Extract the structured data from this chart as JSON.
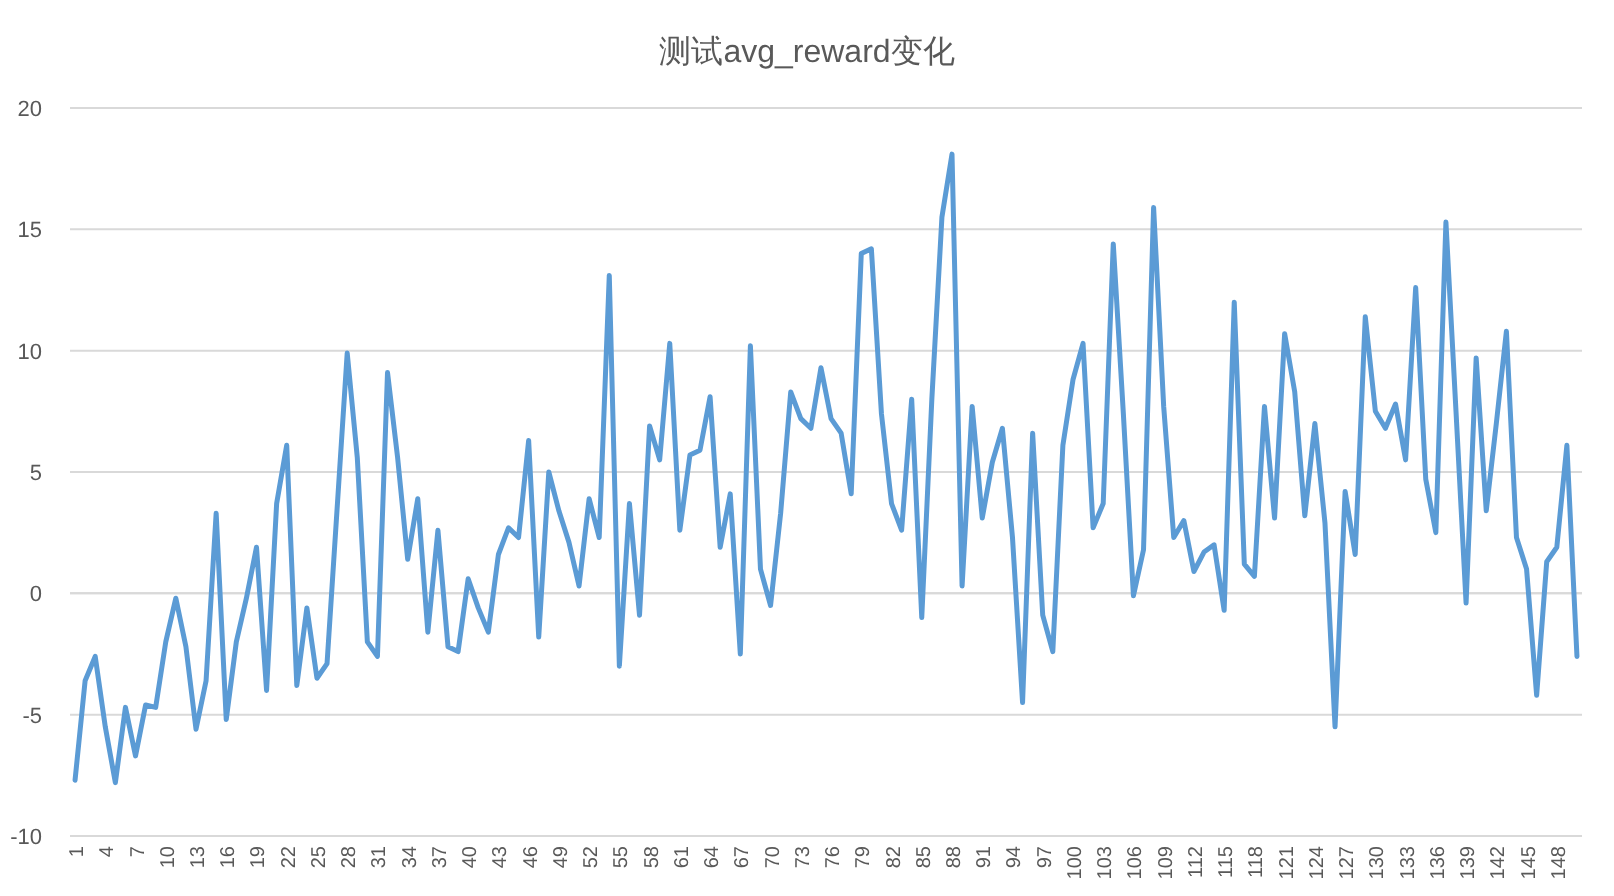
{
  "chart_data": {
    "type": "line",
    "title": "测试avg_reward变化",
    "categories": [
      "1",
      null,
      null,
      "4",
      null,
      null,
      "7",
      null,
      null,
      "10",
      null,
      null,
      "13",
      null,
      null,
      "16",
      null,
      null,
      "19",
      null,
      null,
      "22",
      null,
      null,
      "25",
      null,
      null,
      "28",
      null,
      null,
      "31",
      null,
      null,
      "34",
      null,
      null,
      "37",
      null,
      null,
      "40",
      null,
      null,
      "43",
      null,
      null,
      "46",
      null,
      null,
      "49",
      null,
      null,
      "52",
      null,
      null,
      "55",
      null,
      null,
      "58",
      null,
      null,
      "61",
      null,
      null,
      "64",
      null,
      null,
      "67",
      null,
      null,
      "70",
      null,
      null,
      "73",
      null,
      null,
      "76",
      null,
      null,
      "79",
      null,
      null,
      "82",
      null,
      null,
      "85",
      null,
      null,
      "88",
      null,
      null,
      "91",
      null,
      null,
      "94",
      null,
      null,
      "97",
      null,
      null,
      "100",
      null,
      null,
      "103",
      null,
      null,
      "106",
      null,
      null,
      "109",
      null,
      null,
      "112",
      null,
      null,
      "115",
      null,
      null,
      "118",
      null,
      null,
      "121",
      null,
      null,
      "124",
      null,
      null,
      "127",
      null,
      null,
      "130",
      null,
      null,
      "133",
      null,
      null,
      "136",
      null,
      null,
      "139",
      null,
      null,
      "142",
      null,
      null,
      "145",
      null,
      null,
      "148",
      null,
      null
    ],
    "series": [
      {
        "color": "#5b9bd5",
        "values": [
          -7.7,
          -3.6,
          -2.6,
          -5.5,
          -7.8,
          -4.7,
          -6.7,
          -4.6,
          -4.7,
          -2.0,
          -0.2,
          -2.2,
          -5.6,
          -3.6,
          3.3,
          -5.2,
          -2.0,
          -0.2,
          1.9,
          -4.0,
          3.7,
          6.1,
          -3.8,
          -0.6,
          -3.5,
          -2.9,
          3.5,
          9.9,
          5.6,
          -2.0,
          -2.6,
          9.1,
          5.6,
          1.4,
          3.9,
          -1.6,
          2.6,
          -2.2,
          -2.4,
          0.6,
          -0.6,
          -1.6,
          1.6,
          2.7,
          2.3,
          6.3,
          -1.8,
          5.0,
          3.4,
          2.1,
          0.3,
          3.9,
          2.3,
          13.1,
          -3.0,
          3.7,
          -0.9,
          6.9,
          5.5,
          10.3,
          2.6,
          5.7,
          5.9,
          8.1,
          1.9,
          4.1,
          -2.5,
          10.2,
          1.0,
          -0.5,
          3.3,
          8.3,
          7.2,
          6.8,
          9.3,
          7.2,
          6.6,
          4.1,
          14.0,
          14.2,
          7.4,
          3.7,
          2.6,
          8.0,
          -1.0,
          8.0,
          15.5,
          18.1,
          0.3,
          7.7,
          3.1,
          5.4,
          6.8,
          2.3,
          -4.5,
          6.6,
          -0.9,
          -2.4,
          6.1,
          8.8,
          10.3,
          2.7,
          3.7,
          14.4,
          7.4,
          -0.1,
          1.8,
          15.9,
          7.7,
          2.3,
          3.0,
          0.9,
          1.7,
          2.0,
          -0.7,
          12.0,
          1.2,
          0.7,
          7.7,
          3.1,
          10.7,
          8.3,
          3.2,
          7.0,
          2.9,
          -5.5,
          4.2,
          1.6,
          11.4,
          7.5,
          6.8,
          7.8,
          5.5,
          12.6,
          4.7,
          2.5,
          15.3,
          7.5,
          -0.4,
          9.7,
          3.4,
          7.0,
          10.8,
          2.3,
          1.0,
          -4.2,
          1.3,
          1.9,
          6.1,
          -2.6
        ]
      }
    ],
    "ylim": [
      -10,
      20
    ],
    "yticks": [
      -10,
      -5,
      0,
      5,
      10,
      15,
      20
    ],
    "grid": "y",
    "marker": "none",
    "line_style": "solid"
  }
}
